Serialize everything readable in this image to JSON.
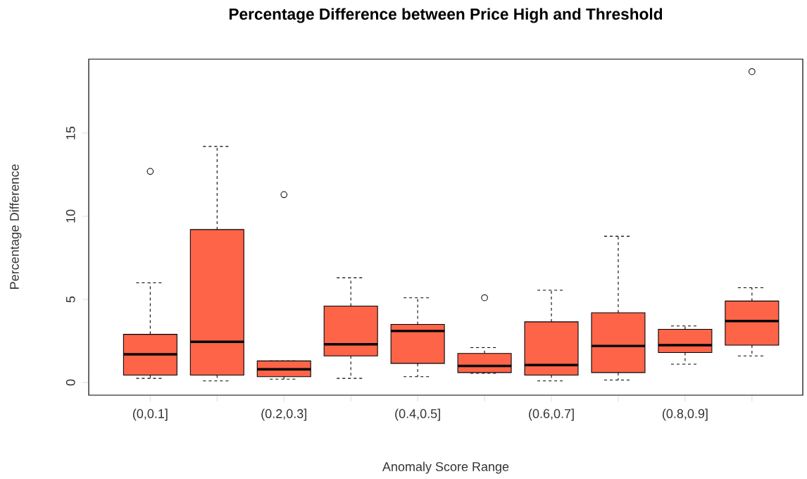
{
  "chart_data": {
    "type": "box",
    "title": "Percentage Difference between Price High and Threshold",
    "xlabel": "Anomaly Score Range",
    "ylabel": "Percentage Difference",
    "categories": [
      "(0,0.1]",
      null,
      "(0.2,0.3]",
      null,
      "(0.4,0.5]",
      null,
      "(0.6,0.7]",
      null,
      "(0.8,0.9]",
      null
    ],
    "color": "#fd6448",
    "marker": "circle",
    "grid": false,
    "ylim": [
      -0.76,
      19.45
    ],
    "yticks": [
      0,
      5,
      10,
      15
    ],
    "boxes": [
      {
        "low": 0.25,
        "q1": 0.45,
        "median": 1.7,
        "q3": 2.9,
        "high": 6.0,
        "outliers": [
          12.7
        ]
      },
      {
        "low": 0.1,
        "q1": 0.45,
        "median": 2.45,
        "q3": 9.2,
        "high": 14.2
      },
      {
        "low": 0.2,
        "q1": 0.35,
        "median": 0.8,
        "q3": 1.3,
        "high": 1.3,
        "outliers": [
          11.3
        ]
      },
      {
        "low": 0.25,
        "q1": 1.6,
        "median": 2.3,
        "q3": 4.6,
        "high": 6.3
      },
      {
        "low": 0.35,
        "q1": 1.15,
        "median": 3.1,
        "q3": 3.5,
        "high": 5.1
      },
      {
        "low": 0.55,
        "q1": 0.6,
        "median": 1.0,
        "q3": 1.75,
        "high": 2.1,
        "outliers": [
          5.1
        ]
      },
      {
        "low": 0.1,
        "q1": 0.45,
        "median": 1.05,
        "q3": 3.65,
        "high": 5.55
      },
      {
        "low": 0.15,
        "q1": 0.6,
        "median": 2.2,
        "q3": 4.2,
        "high": 8.8
      },
      {
        "low": 1.1,
        "q1": 1.8,
        "median": 2.25,
        "q3": 3.2,
        "high": 3.4
      },
      {
        "low": 1.6,
        "q1": 2.25,
        "median": 3.7,
        "q3": 4.9,
        "high": 5.7,
        "outliers": [
          18.7
        ]
      }
    ]
  }
}
